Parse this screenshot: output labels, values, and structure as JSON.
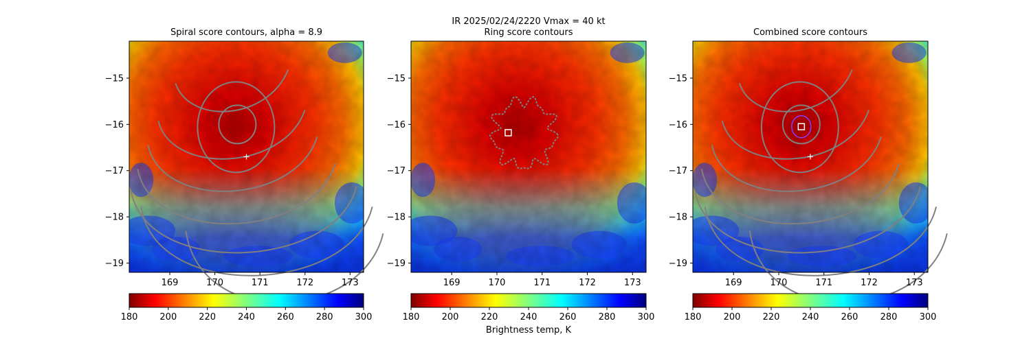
{
  "figure": {
    "suptitle_line1": "IR  2025/02/24/2220    Vmax = 40 kt",
    "colorbar_label": "Brightness temp, K"
  },
  "chart_data": [
    {
      "type": "heatmap",
      "title": "Spiral score contours, alpha =  8.9",
      "xlim": [
        168.1,
        173.3
      ],
      "ylim": [
        -19.2,
        -14.2
      ],
      "xticks": [
        169,
        170,
        171,
        172,
        173
      ],
      "yticks": [
        -15,
        -16,
        -17,
        -18,
        -19
      ],
      "x_tick_labels": [
        "169",
        "170",
        "171",
        "172",
        "173"
      ],
      "y_tick_labels": [
        "−15",
        "−16",
        "−17",
        "−18",
        "−19"
      ],
      "colorbar": {
        "min": 180,
        "max": 300,
        "ticks": [
          "180",
          "200",
          "220",
          "240",
          "260",
          "280",
          "300"
        ]
      },
      "marker_plus": [
        170.7,
        -16.7
      ],
      "center_of_contours": [
        170.5,
        -16.0
      ]
    },
    {
      "type": "heatmap",
      "title": "Ring score contours",
      "xlim": [
        168.1,
        173.3
      ],
      "ylim": [
        -19.2,
        -14.2
      ],
      "xticks": [
        169,
        170,
        171,
        172,
        173
      ],
      "yticks": [
        -15,
        -16,
        -17,
        -18,
        -19
      ],
      "x_tick_labels": [
        "169",
        "170",
        "171",
        "172",
        "173"
      ],
      "y_tick_labels": [
        "−15",
        "−16",
        "−17",
        "−18",
        "−19"
      ],
      "colorbar": {
        "min": 180,
        "max": 300,
        "ticks": [
          "180",
          "200",
          "220",
          "240",
          "260",
          "280",
          "300"
        ]
      },
      "marker_square": [
        170.25,
        -16.18
      ],
      "ring_center": [
        170.6,
        -16.2
      ]
    },
    {
      "type": "heatmap",
      "title": "Combined score contours",
      "xlim": [
        168.1,
        173.3
      ],
      "ylim": [
        -19.2,
        -14.2
      ],
      "xticks": [
        169,
        170,
        171,
        172,
        173
      ],
      "yticks": [
        -15,
        -16,
        -17,
        -18,
        -19
      ],
      "x_tick_labels": [
        "169",
        "170",
        "171",
        "172",
        "173"
      ],
      "y_tick_labels": [
        "−15",
        "−16",
        "−17",
        "−18",
        "−19"
      ],
      "colorbar": {
        "min": 180,
        "max": 300,
        "ticks": [
          "180",
          "200",
          "220",
          "240",
          "260",
          "280",
          "300"
        ]
      },
      "marker_plus": [
        170.7,
        -16.7
      ],
      "marker_square": [
        170.5,
        -16.05
      ],
      "center_of_contours": [
        170.5,
        -16.0
      ]
    }
  ]
}
